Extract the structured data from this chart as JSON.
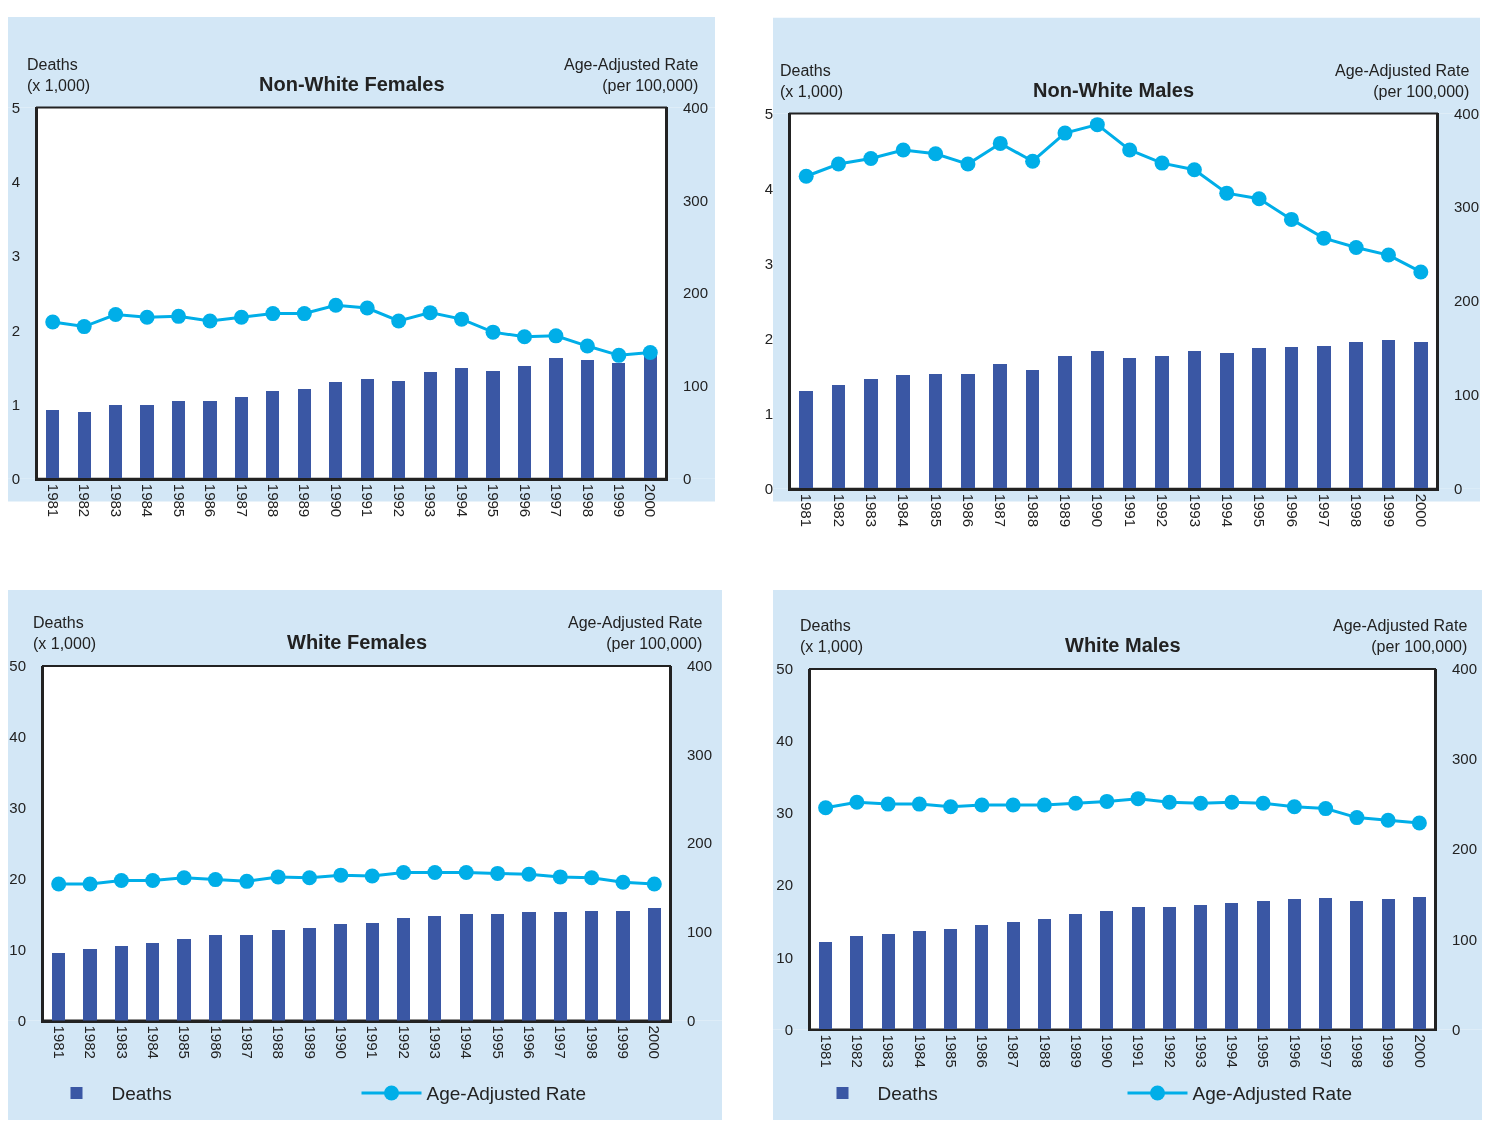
{
  "chart_data": [
    {
      "type": "bar",
      "title": "Non-White Females",
      "ylabel": "Deaths\n(x 1,000)",
      "y2label": "Age-Adjusted Rate\n(per 100,000)",
      "categories": [
        "1981",
        "1982",
        "1983",
        "1984",
        "1985",
        "1986",
        "1987",
        "1988",
        "1989",
        "1990",
        "1991",
        "1992",
        "1993",
        "1994",
        "1995",
        "1996",
        "1997",
        "1998",
        "1999",
        "2000"
      ],
      "marker": "circle",
      "ylim": [
        0,
        5
      ],
      "yticks": [
        0,
        1,
        2,
        3,
        4,
        5
      ],
      "y2lim": [
        0,
        400
      ],
      "y2ticks": [
        0,
        100,
        200,
        300,
        400
      ],
      "series": [
        {
          "color": "#3a57a4",
          "values": [
            0.92,
            0.89,
            0.99,
            0.99,
            1.04,
            1.04,
            1.1,
            1.17,
            1.2,
            1.3,
            1.34,
            1.31,
            1.43,
            1.48,
            1.45,
            1.51,
            1.62,
            1.59,
            1.55,
            1.66
          ]
        },
        {
          "type": "line",
          "axis": "y2",
          "color": "#00aee8",
          "values": [
            169,
            164,
            177,
            174,
            175,
            170,
            174,
            178,
            178,
            187,
            184,
            170,
            179,
            172,
            158,
            153,
            154,
            143,
            133,
            136
          ]
        }
      ]
    },
    {
      "type": "bar",
      "title": "Non-White Males",
      "ylabel": "Deaths\n(x 1,000)",
      "y2label": "Age-Adjusted Rate\n(per 100,000)",
      "categories": [
        "1981",
        "1982",
        "1983",
        "1984",
        "1985",
        "1986",
        "1987",
        "1988",
        "1989",
        "1990",
        "1991",
        "1992",
        "1993",
        "1994",
        "1995",
        "1996",
        "1997",
        "1998",
        "1999",
        "2000"
      ],
      "marker": "circle",
      "ylim": [
        0,
        5
      ],
      "yticks": [
        0,
        1,
        2,
        3,
        4,
        5
      ],
      "y2lim": [
        0,
        400
      ],
      "y2ticks": [
        0,
        100,
        200,
        300,
        400
      ],
      "series": [
        {
          "color": "#3a57a4",
          "values": [
            1.3,
            1.38,
            1.45,
            1.51,
            1.52,
            1.52,
            1.65,
            1.58,
            1.76,
            1.83,
            1.74,
            1.76,
            1.83,
            1.8,
            1.87,
            1.88,
            1.9,
            1.95,
            1.98,
            1.95
          ]
        },
        {
          "type": "line",
          "axis": "y2",
          "color": "#00aee8",
          "values": [
            333,
            346,
            352,
            361,
            357,
            346,
            368,
            349,
            379,
            388,
            361,
            347,
            340,
            315,
            309,
            287,
            267,
            257,
            249,
            231
          ]
        }
      ]
    },
    {
      "type": "bar",
      "title": "White Females",
      "ylabel": "Deaths\n(x 1,000)",
      "y2label": "Age-Adjusted Rate\n(per 100,000)",
      "categories": [
        "1981",
        "1982",
        "1983",
        "1984",
        "1985",
        "1986",
        "1987",
        "1988",
        "1989",
        "1990",
        "1991",
        "1992",
        "1993",
        "1994",
        "1995",
        "1996",
        "1997",
        "1998",
        "1999",
        "2000"
      ],
      "marker": "circle",
      "legend": "bottom",
      "ylim": [
        0,
        50
      ],
      "yticks": [
        0,
        10,
        20,
        30,
        40,
        50
      ],
      "y2lim": [
        0,
        400
      ],
      "y2ticks": [
        0,
        100,
        200,
        300,
        400
      ],
      "series": [
        {
          "name": "Deaths",
          "color": "#3a57a4",
          "values": [
            9.5,
            10.1,
            10.5,
            10.9,
            11.5,
            12.0,
            12.1,
            12.8,
            13.0,
            13.6,
            13.7,
            14.5,
            14.7,
            15.0,
            15.0,
            15.3,
            15.3,
            15.5,
            15.5,
            15.9
          ]
        },
        {
          "type": "line",
          "axis": "y2",
          "name": "Age-Adjusted Rate",
          "color": "#00aee8",
          "values": [
            154,
            154,
            158,
            158,
            161,
            159,
            157,
            162,
            161,
            164,
            163,
            167,
            167,
            167,
            166,
            165,
            162,
            161,
            156,
            154
          ]
        }
      ]
    },
    {
      "type": "bar",
      "title": "White Males",
      "ylabel": "Deaths\n(x 1,000)",
      "y2label": "Age-Adjusted Rate\n(per 100,000)",
      "categories": [
        "1981",
        "1982",
        "1983",
        "1984",
        "1985",
        "1986",
        "1987",
        "1988",
        "1989",
        "1990",
        "1991",
        "1992",
        "1993",
        "1994",
        "1995",
        "1996",
        "1997",
        "1998",
        "1999",
        "2000"
      ],
      "marker": "circle",
      "legend": "bottom",
      "ylim": [
        0,
        50
      ],
      "yticks": [
        0,
        10,
        20,
        30,
        40,
        50
      ],
      "y2lim": [
        0,
        400
      ],
      "y2ticks": [
        0,
        100,
        200,
        300,
        400
      ],
      "series": [
        {
          "name": "Deaths",
          "color": "#3a57a4",
          "values": [
            12.2,
            13.0,
            13.2,
            13.6,
            14.0,
            14.5,
            14.9,
            15.3,
            16.0,
            16.4,
            17.0,
            17.0,
            17.3,
            17.5,
            17.8,
            18.1,
            18.2,
            17.8,
            18.1,
            18.4
          ]
        },
        {
          "type": "line",
          "axis": "y2",
          "name": "Age-Adjusted Rate",
          "color": "#00aee8",
          "values": [
            246,
            252,
            250,
            250,
            247,
            249,
            249,
            249,
            251,
            253,
            256,
            252,
            251,
            252,
            251,
            247,
            245,
            235,
            232,
            229
          ]
        }
      ]
    }
  ]
}
